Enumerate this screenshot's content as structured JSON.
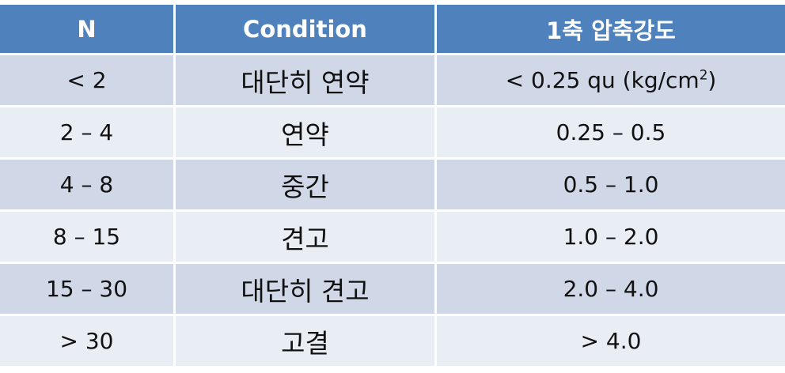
{
  "table": {
    "headers": [
      "N",
      "Condition",
      "1축 압축강도"
    ],
    "rows": [
      {
        "n": "< 2",
        "condition": "대단히 연약",
        "strength": "< 0.25 qu (kg/cm",
        "strength_sup": "2",
        "strength_tail": ")"
      },
      {
        "n": "2 – 4",
        "condition": "연약",
        "strength": "0.25 – 0.5"
      },
      {
        "n": "4 – 8",
        "condition": "중간",
        "strength": "0.5 – 1.0"
      },
      {
        "n": "8 – 15",
        "condition": "견고",
        "strength": "1.0 – 2.0"
      },
      {
        "n": "15 – 30",
        "condition": "대단히 견고",
        "strength": "2.0 – 4.0"
      },
      {
        "n": "> 30",
        "condition": "고결",
        "strength": "> 4.0"
      }
    ]
  },
  "colors": {
    "header_bg": "#4f81bd",
    "row_dark": "#d0d8e8",
    "row_light": "#e9edf4"
  }
}
